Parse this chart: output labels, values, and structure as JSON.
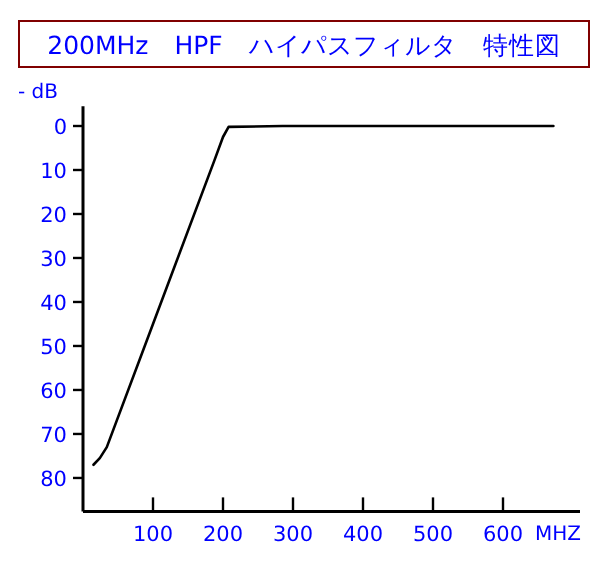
{
  "chart_data": {
    "type": "line",
    "title": "200MHz　HPF　ハイパスフィルタ　特性図",
    "xlabel": "MHZ",
    "ylabel": "- dB",
    "x": [
      15,
      24,
      34,
      100,
      188,
      200,
      208,
      285,
      672
    ],
    "series": [
      {
        "color": "#000000",
        "values": [
          77,
          75.5,
          73,
          45,
          7.7,
          2.5,
          0.2,
          0,
          0
        ]
      }
    ],
    "xlim": [
      0,
      710
    ],
    "ylim": [
      87.6,
      -4.5
    ],
    "xticks": [
      100,
      200,
      300,
      400,
      500,
      600
    ],
    "yticks": [
      0,
      10,
      20,
      30,
      40,
      50,
      60,
      70,
      80
    ]
  }
}
